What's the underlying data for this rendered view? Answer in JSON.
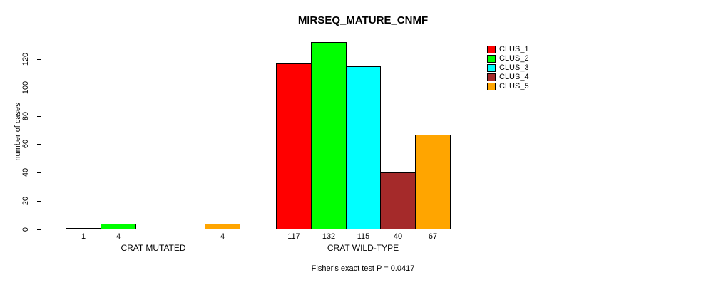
{
  "chart_data": {
    "type": "bar",
    "title": "MIRSEQ_MATURE_CNMF",
    "ylabel": "number of cases",
    "xlabel": "",
    "ylim": [
      0,
      132
    ],
    "yticks": [
      0,
      20,
      40,
      60,
      80,
      100,
      120
    ],
    "grid": false,
    "legend_position": "right",
    "legend": [
      {
        "name": "CLUS_1",
        "color": "#ff0000"
      },
      {
        "name": "CLUS_2",
        "color": "#00ff00"
      },
      {
        "name": "CLUS_3",
        "color": "#00ffff"
      },
      {
        "name": "CLUS_4",
        "color": "#a52a2a"
      },
      {
        "name": "CLUS_5",
        "color": "#ffa500"
      }
    ],
    "groups": [
      {
        "label": "CRAT MUTATED",
        "values": [
          1,
          4,
          0,
          0,
          4
        ],
        "bar_labels": [
          "1",
          "4",
          "",
          "",
          "4"
        ]
      },
      {
        "label": "CRAT WILD-TYPE",
        "values": [
          117,
          132,
          115,
          40,
          67
        ],
        "bar_labels": [
          "117",
          "132",
          "115",
          "40",
          "67"
        ]
      }
    ],
    "footnote": "Fisher's exact test P = 0.0417"
  },
  "colors": {
    "background": "#ffffff",
    "axis": "#000000",
    "text": "#000000"
  }
}
